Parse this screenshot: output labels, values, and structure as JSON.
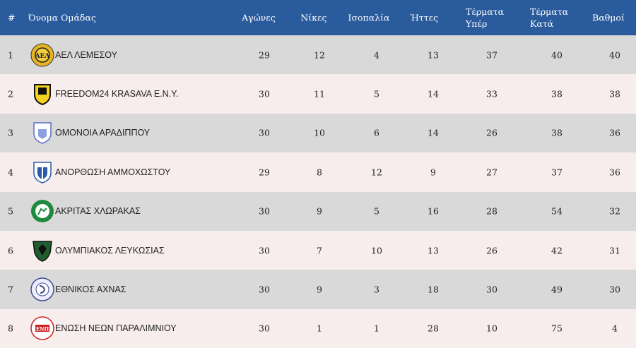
{
  "headers": {
    "pos": "#",
    "team": "Όνομα Ομάδας",
    "played": "Αγώνες",
    "wins": "Νίκες",
    "draws": "Ισοπαλία",
    "losses": "Ήττες",
    "gf_1": "Τέρματα",
    "gf_2": "Υπέρ",
    "ga_1": "Τέρματα",
    "ga_2": "Κατά",
    "points": "Βαθμοί"
  },
  "colors": {
    "header": "#2a5b9c",
    "row_odd": "#d9d9d9",
    "row_even": "#f8eded"
  },
  "rows": [
    {
      "pos": "1",
      "team": "ΑΕΛ ΛΕΜΕΣΟΥ",
      "logo": "ael-crest",
      "played": "29",
      "wins": "12",
      "draws": "4",
      "losses": "13",
      "gf": "37",
      "ga": "40",
      "points": "40"
    },
    {
      "pos": "2",
      "team": "FREEDOM24 KRASAVA E.N.Y.",
      "logo": "krasava-crest",
      "played": "30",
      "wins": "11",
      "draws": "5",
      "losses": "14",
      "gf": "33",
      "ga": "38",
      "points": "38"
    },
    {
      "pos": "3",
      "team": "ΟΜΟΝΟΙΑ ΑΡΑΔΙΠΠΟΥ",
      "logo": "omonoia-aradippou-crest",
      "played": "30",
      "wins": "10",
      "draws": "6",
      "losses": "14",
      "gf": "26",
      "ga": "38",
      "points": "36"
    },
    {
      "pos": "4",
      "team": "ΑΝΟΡΘΩΣΗ ΑΜΜΟΧΩΣΤΟΥ",
      "logo": "anorthosis-crest",
      "played": "29",
      "wins": "8",
      "draws": "12",
      "losses": "9",
      "gf": "27",
      "ga": "37",
      "points": "36"
    },
    {
      "pos": "5",
      "team": "ΑΚΡΙΤΑΣ ΧΛΩΡΑΚΑΣ",
      "logo": "akritas-crest",
      "played": "30",
      "wins": "9",
      "draws": "5",
      "losses": "16",
      "gf": "28",
      "ga": "54",
      "points": "32"
    },
    {
      "pos": "6",
      "team": "ΟΛΥΜΠΙΑΚΟΣ ΛΕΥΚΩΣΙΑΣ",
      "logo": "olympiakos-crest",
      "played": "30",
      "wins": "7",
      "draws": "10",
      "losses": "13",
      "gf": "26",
      "ga": "42",
      "points": "31"
    },
    {
      "pos": "7",
      "team": "ΕΘΝΙΚΟΣ ΑΧΝΑΣ",
      "logo": "ethnikos-crest",
      "played": "30",
      "wins": "9",
      "draws": "3",
      "losses": "18",
      "gf": "30",
      "ga": "49",
      "points": "30"
    },
    {
      "pos": "8",
      "team": "ΕΝΩΣΗ ΝΕΩΝ ΠΑΡΑΛΙΜΝΙΟΥ",
      "logo": "enp-crest",
      "played": "30",
      "wins": "1",
      "draws": "1",
      "losses": "28",
      "gf": "10",
      "ga": "75",
      "points": "4"
    }
  ]
}
